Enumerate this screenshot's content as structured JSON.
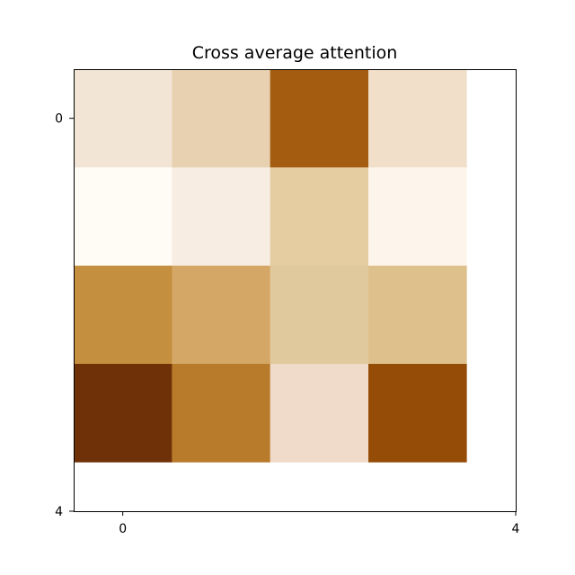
{
  "chart_data": {
    "type": "heatmap",
    "title": "Cross average attention",
    "xlabel": "",
    "ylabel": "",
    "colormap": "copper-like (light cream to dark brown)",
    "color_low": "#fffcf5",
    "color_high": "#6f3107",
    "xlim": [
      -0.5,
      4
    ],
    "ylim": [
      4,
      -0.5
    ],
    "x_ticks": [
      0,
      4
    ],
    "y_ticks": [
      0,
      4
    ],
    "x_tick_labels": [
      "0",
      "4"
    ],
    "y_tick_labels": [
      "0",
      "4"
    ],
    "grid": false,
    "rows": 4,
    "cols": 4,
    "values": [
      [
        0.12,
        0.25,
        0.85,
        0.15
      ],
      [
        0.0,
        0.08,
        0.3,
        0.04
      ],
      [
        0.6,
        0.45,
        0.3,
        0.35
      ],
      [
        1.0,
        0.65,
        0.14,
        0.9
      ]
    ],
    "cell_colors": [
      [
        "#f3e5d5",
        "#e8d1b0",
        "#a45d10",
        "#f1dfca"
      ],
      [
        "#fffcf5",
        "#f7ede3",
        "#e5cca1",
        "#fdf5ec"
      ],
      [
        "#c48f3e",
        "#d4a766",
        "#e0c99d",
        "#dec08c"
      ],
      [
        "#6f3107",
        "#b87a2b",
        "#f0dbca",
        "#954c07"
      ]
    ]
  }
}
